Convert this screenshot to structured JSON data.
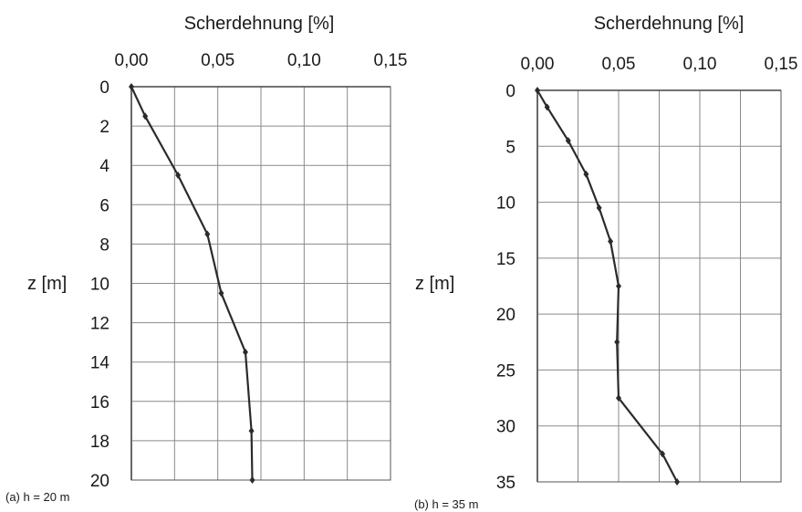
{
  "chart_data": [
    {
      "type": "line",
      "caption": "(a) h = 20 m",
      "xlabel": "Scherdehnung [%]",
      "ylabel": "z [m]",
      "xlim": [
        0,
        0.15
      ],
      "ylim": [
        0,
        20
      ],
      "y_inverted": true,
      "x_axis_position": "top",
      "grid": true,
      "xticks": [
        "0,00",
        "0,05",
        "0,10",
        "0,15"
      ],
      "xtick_values": [
        0,
        0.05,
        0.1,
        0.15
      ],
      "xgrid_step": 0.025,
      "yticks": [
        "0",
        "2",
        "4",
        "6",
        "8",
        "10",
        "12",
        "14",
        "16",
        "18",
        "20"
      ],
      "ytick_values": [
        0,
        2,
        4,
        6,
        8,
        10,
        12,
        14,
        16,
        18,
        20
      ],
      "line_color": "#2b2b2b",
      "series": [
        {
          "x": [
            0.0,
            0.008,
            0.027,
            0.044,
            0.052,
            0.066,
            0.0695,
            0.07
          ],
          "y": [
            0,
            1.5,
            4.5,
            7.5,
            10.5,
            13.5,
            17.5,
            20
          ]
        }
      ]
    },
    {
      "type": "line",
      "caption": "(b) h = 35 m",
      "xlabel": "Scherdehnung [%]",
      "ylabel": "z [m]",
      "xlim": [
        0,
        0.15
      ],
      "ylim": [
        0,
        35
      ],
      "y_inverted": true,
      "x_axis_position": "top",
      "grid": true,
      "xticks": [
        "0,00",
        "0,05",
        "0,10",
        "0,15"
      ],
      "xtick_values": [
        0,
        0.05,
        0.1,
        0.15
      ],
      "xgrid_step": 0.025,
      "yticks": [
        "0",
        "5",
        "10",
        "15",
        "20",
        "25",
        "30",
        "35"
      ],
      "ytick_values": [
        0,
        5,
        10,
        15,
        20,
        25,
        30,
        35
      ],
      "line_color": "#2b2b2b",
      "series": [
        {
          "x": [
            0.0,
            0.006,
            0.019,
            0.03,
            0.038,
            0.045,
            0.05,
            0.049,
            0.05,
            0.077,
            0.086
          ],
          "y": [
            0,
            1.5,
            4.5,
            7.5,
            10.5,
            13.5,
            17.5,
            22.5,
            27.5,
            32.5,
            35
          ]
        }
      ]
    }
  ]
}
